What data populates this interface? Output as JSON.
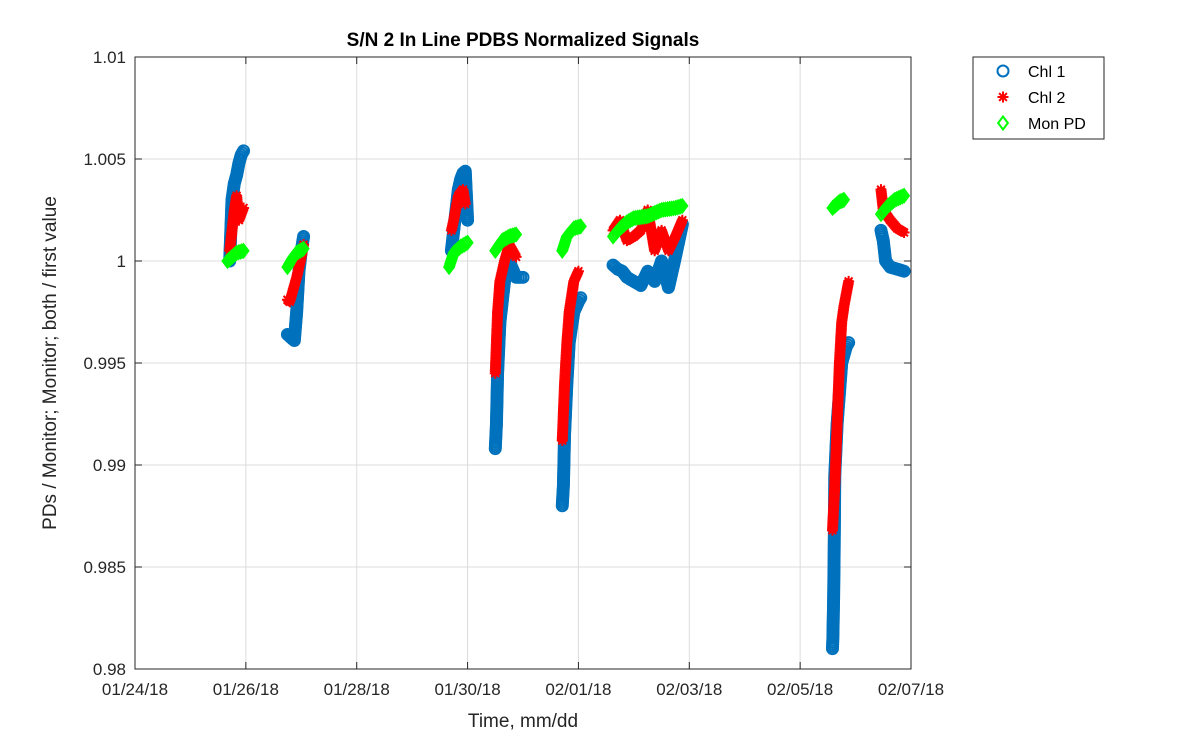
{
  "chart_data": {
    "type": "scatter",
    "title": "S/N 2 In Line PDBS Normalized Signals",
    "xlabel": "Time, mm/dd",
    "ylabel": "PDs / Monitor; Monitor; both / first value",
    "x_unit": "days",
    "xlim": [
      "2018-01-24",
      "2018-02-07"
    ],
    "ylim": [
      0.98,
      1.01
    ],
    "xticks": [
      "2018-01-24",
      "2018-01-26",
      "2018-01-28",
      "2018-01-30",
      "2018-02-01",
      "2018-02-03",
      "2018-02-05",
      "2018-02-07"
    ],
    "xtick_labels": [
      "01/24/18",
      "01/26/18",
      "01/28/18",
      "01/30/18",
      "02/01/18",
      "02/03/18",
      "02/05/18",
      "02/07/18"
    ],
    "yticks": [
      0.98,
      0.985,
      0.99,
      0.995,
      1,
      1.005,
      1.01
    ],
    "ytick_labels": [
      "0.98",
      "0.985",
      "0.99",
      "0.995",
      "1",
      "1.005",
      "1.01"
    ],
    "grid": true,
    "legend_position": "outside-top-right",
    "series": [
      {
        "name": "Chl 1",
        "marker": "circle",
        "color": "#0072BD",
        "points": [
          [
            "2018-01-25 17:00",
            1.0
          ],
          [
            "2018-01-25 17:30",
            1.0015
          ],
          [
            "2018-01-25 18:00",
            1.003
          ],
          [
            "2018-01-25 19:00",
            1.0038
          ],
          [
            "2018-01-25 20:00",
            1.0042
          ],
          [
            "2018-01-25 21:00",
            1.0048
          ],
          [
            "2018-01-25 22:00",
            1.0052
          ],
          [
            "2018-01-25 23:00",
            1.0054
          ],
          [
            "2018-01-26 18:00",
            0.9964
          ],
          [
            "2018-01-26 19:00",
            0.9963
          ],
          [
            "2018-01-26 20:00",
            0.9962
          ],
          [
            "2018-01-26 21:00",
            0.9961
          ],
          [
            "2018-01-26 22:00",
            0.9975
          ],
          [
            "2018-01-26 23:00",
            0.9995
          ],
          [
            "2018-01-27 00:00",
            1.0005
          ],
          [
            "2018-01-27 01:00",
            1.0012
          ],
          [
            "2018-01-29 17:00",
            1.0005
          ],
          [
            "2018-01-29 18:00",
            1.0015
          ],
          [
            "2018-01-29 19:00",
            1.0025
          ],
          [
            "2018-01-29 20:00",
            1.0035
          ],
          [
            "2018-01-29 21:00",
            1.004
          ],
          [
            "2018-01-29 22:00",
            1.0043
          ],
          [
            "2018-01-29 23:00",
            1.0044
          ],
          [
            "2018-01-30 00:00",
            1.002
          ],
          [
            "2018-01-30 12:00",
            0.9908
          ],
          [
            "2018-01-30 12:30",
            0.992
          ],
          [
            "2018-01-30 13:00",
            0.9945
          ],
          [
            "2018-01-30 14:00",
            0.997
          ],
          [
            "2018-01-30 16:00",
            0.999
          ],
          [
            "2018-01-30 18:00",
            1.0
          ],
          [
            "2018-01-30 21:00",
            0.9992
          ],
          [
            "2018-01-31 00:00",
            0.9992
          ],
          [
            "2018-01-31 17:00",
            0.988
          ],
          [
            "2018-01-31 17:30",
            0.989
          ],
          [
            "2018-01-31 18:00",
            0.9915
          ],
          [
            "2018-01-31 19:00",
            0.994
          ],
          [
            "2018-01-31 20:00",
            0.996
          ],
          [
            "2018-01-31 22:00",
            0.9975
          ],
          [
            "2018-02-01 00:00",
            0.998
          ],
          [
            "2018-02-01 01:00",
            0.9982
          ],
          [
            "2018-02-01 15:00",
            0.9998
          ],
          [
            "2018-02-01 17:00",
            0.9996
          ],
          [
            "2018-02-01 19:00",
            0.9995
          ],
          [
            "2018-02-01 21:00",
            0.9992
          ],
          [
            "2018-02-02 00:00",
            0.999
          ],
          [
            "2018-02-02 03:00",
            0.9988
          ],
          [
            "2018-02-02 06:00",
            0.9995
          ],
          [
            "2018-02-02 09:00",
            0.999
          ],
          [
            "2018-02-02 12:00",
            1.0
          ],
          [
            "2018-02-02 15:00",
            0.9987
          ],
          [
            "2018-02-02 18:00",
            1.0002
          ],
          [
            "2018-02-02 21:00",
            1.0018
          ],
          [
            "2018-02-05 14:00",
            0.981
          ],
          [
            "2018-02-05 14:10",
            0.9815
          ],
          [
            "2018-02-05 14:20",
            0.9825
          ],
          [
            "2018-02-05 14:30",
            0.9835
          ],
          [
            "2018-02-05 14:40",
            0.985
          ],
          [
            "2018-02-05 14:50",
            0.987
          ],
          [
            "2018-02-05 15:00",
            0.9895
          ],
          [
            "2018-02-05 16:00",
            0.992
          ],
          [
            "2018-02-05 17:00",
            0.9935
          ],
          [
            "2018-02-05 18:00",
            0.995
          ],
          [
            "2018-02-05 20:00",
            0.9958
          ],
          [
            "2018-02-05 21:00",
            0.996
          ],
          [
            "2018-02-06 11:00",
            1.0015
          ],
          [
            "2018-02-06 12:00",
            1.001
          ],
          [
            "2018-02-06 13:00",
            1.0
          ],
          [
            "2018-02-06 15:00",
            0.9997
          ],
          [
            "2018-02-06 18:00",
            0.9996
          ],
          [
            "2018-02-06 21:00",
            0.9995
          ]
        ]
      },
      {
        "name": "Chl 2",
        "marker": "asterisk",
        "color": "#FF0000",
        "points": [
          [
            "2018-01-25 17:00",
            1.0005
          ],
          [
            "2018-01-25 18:00",
            1.0015
          ],
          [
            "2018-01-25 19:00",
            1.0025
          ],
          [
            "2018-01-25 20:00",
            1.0032
          ],
          [
            "2018-01-25 21:00",
            1.002
          ],
          [
            "2018-01-25 22:00",
            1.0023
          ],
          [
            "2018-01-25 23:00",
            1.0026
          ],
          [
            "2018-01-26 18:00",
            0.9981
          ],
          [
            "2018-01-26 19:00",
            0.998
          ],
          [
            "2018-01-26 20:00",
            0.9984
          ],
          [
            "2018-01-26 22:00",
            0.9992
          ],
          [
            "2018-01-27 00:00",
            1.0002
          ],
          [
            "2018-01-27 01:00",
            1.0008
          ],
          [
            "2018-01-29 17:00",
            1.0015
          ],
          [
            "2018-01-29 18:00",
            1.002
          ],
          [
            "2018-01-29 19:00",
            1.0026
          ],
          [
            "2018-01-29 20:00",
            1.0032
          ],
          [
            "2018-01-29 22:00",
            1.0035
          ],
          [
            "2018-01-29 23:00",
            1.0028
          ],
          [
            "2018-01-30 12:00",
            0.9945
          ],
          [
            "2018-01-30 12:30",
            0.996
          ],
          [
            "2018-01-30 13:00",
            0.9975
          ],
          [
            "2018-01-30 14:00",
            0.999
          ],
          [
            "2018-01-30 16:00",
            1.0
          ],
          [
            "2018-01-30 18:00",
            1.0008
          ],
          [
            "2018-01-30 21:00",
            1.0002
          ],
          [
            "2018-01-31 17:00",
            0.9912
          ],
          [
            "2018-01-31 18:00",
            0.994
          ],
          [
            "2018-01-31 19:00",
            0.996
          ],
          [
            "2018-01-31 20:00",
            0.9975
          ],
          [
            "2018-01-31 22:00",
            0.999
          ],
          [
            "2018-02-01 00:00",
            0.9995
          ],
          [
            "2018-02-01 15:00",
            1.0015
          ],
          [
            "2018-02-01 18:00",
            1.002
          ],
          [
            "2018-02-01 21:00",
            1.001
          ],
          [
            "2018-02-02 00:00",
            1.0012
          ],
          [
            "2018-02-02 03:00",
            1.0015
          ],
          [
            "2018-02-02 06:00",
            1.0025
          ],
          [
            "2018-02-02 09:00",
            1.0005
          ],
          [
            "2018-02-02 12:00",
            1.0015
          ],
          [
            "2018-02-02 15:00",
            1.0005
          ],
          [
            "2018-02-02 18:00",
            1.0012
          ],
          [
            "2018-02-02 21:00",
            1.002
          ],
          [
            "2018-02-05 14:00",
            0.9868
          ],
          [
            "2018-02-05 15:00",
            0.989
          ],
          [
            "2018-02-05 16:00",
            0.992
          ],
          [
            "2018-02-05 17:00",
            0.995
          ],
          [
            "2018-02-05 18:00",
            0.997
          ],
          [
            "2018-02-05 19:00",
            0.9978
          ],
          [
            "2018-02-05 21:00",
            0.999
          ],
          [
            "2018-02-06 11:00",
            1.0035
          ],
          [
            "2018-02-06 12:00",
            1.0025
          ],
          [
            "2018-02-06 15:00",
            1.002
          ],
          [
            "2018-02-06 18:00",
            1.0016
          ],
          [
            "2018-02-06 21:00",
            1.0014
          ]
        ]
      },
      {
        "name": "Mon PD",
        "marker": "diamond",
        "color": "#00FF00",
        "points": [
          [
            "2018-01-25 16:00",
            1.0
          ],
          [
            "2018-01-25 18:00",
            1.0002
          ],
          [
            "2018-01-25 20:00",
            1.0004
          ],
          [
            "2018-01-25 23:00",
            1.0005
          ],
          [
            "2018-01-26 18:00",
            0.9997
          ],
          [
            "2018-01-26 20:00",
            1.0001
          ],
          [
            "2018-01-26 22:00",
            1.0004
          ],
          [
            "2018-01-27 01:00",
            1.0006
          ],
          [
            "2018-01-29 16:00",
            0.9997
          ],
          [
            "2018-01-29 18:00",
            1.0004
          ],
          [
            "2018-01-29 21:00",
            1.0007
          ],
          [
            "2018-01-30 00:00",
            1.0009
          ],
          [
            "2018-01-30 12:00",
            1.0005
          ],
          [
            "2018-01-30 15:00",
            1.001
          ],
          [
            "2018-01-30 18:00",
            1.0012
          ],
          [
            "2018-01-30 21:00",
            1.0013
          ],
          [
            "2018-01-31 17:00",
            1.0005
          ],
          [
            "2018-01-31 19:00",
            1.0012
          ],
          [
            "2018-01-31 22:00",
            1.0016
          ],
          [
            "2018-02-01 01:00",
            1.0017
          ],
          [
            "2018-02-01 15:00",
            1.0012
          ],
          [
            "2018-02-01 18:00",
            1.0016
          ],
          [
            "2018-02-01 21:00",
            1.0019
          ],
          [
            "2018-02-02 00:00",
            1.0021
          ],
          [
            "2018-02-02 06:00",
            1.0022
          ],
          [
            "2018-02-02 12:00",
            1.0025
          ],
          [
            "2018-02-02 18:00",
            1.0026
          ],
          [
            "2018-02-02 21:00",
            1.0027
          ],
          [
            "2018-02-05 14:00",
            1.0026
          ],
          [
            "2018-02-05 17:00",
            1.0029
          ],
          [
            "2018-02-05 19:00",
            1.003
          ],
          [
            "2018-02-06 11:00",
            1.0023
          ],
          [
            "2018-02-06 14:00",
            1.0027
          ],
          [
            "2018-02-06 17:00",
            1.003
          ],
          [
            "2018-02-06 21:00",
            1.0032
          ]
        ]
      }
    ]
  }
}
